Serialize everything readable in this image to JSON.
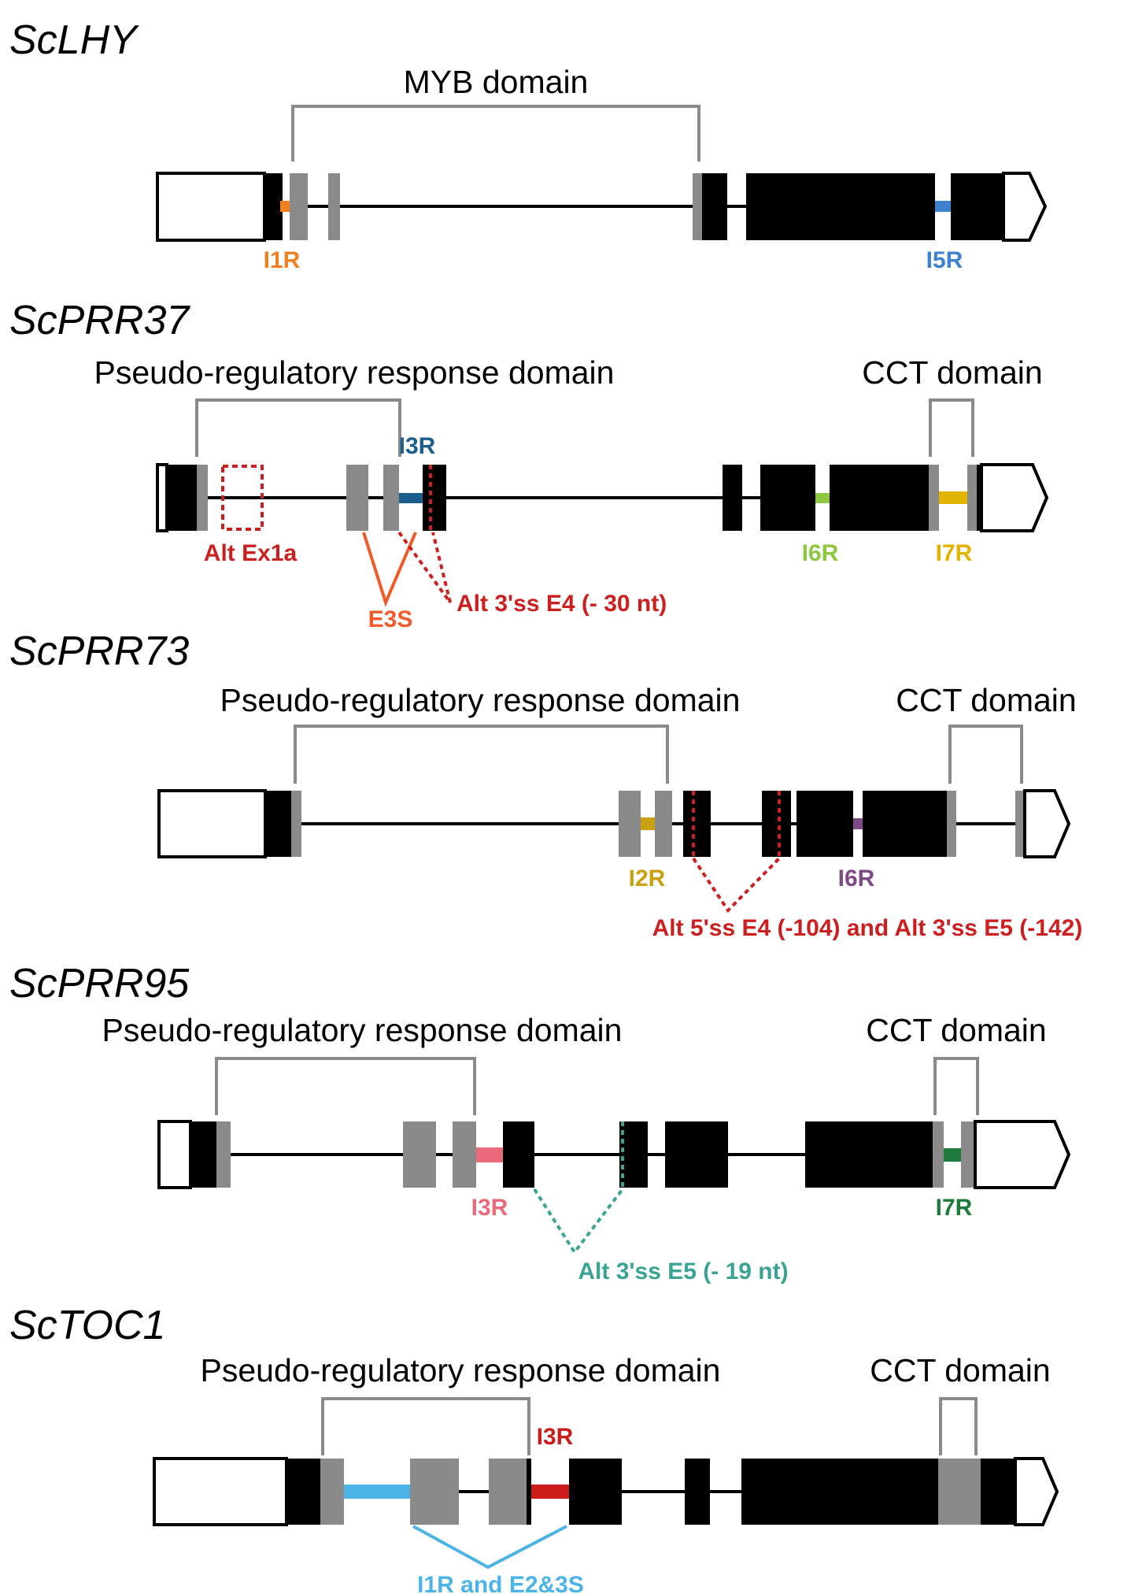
{
  "colors": {
    "orange": "#f08020",
    "blue": "#3c82cf",
    "dark_red": "#cc1f1f",
    "navy": "#1b5e8e",
    "lime": "#8dc63f",
    "gold": "#e0b400",
    "red_orange": "#f05a28",
    "purple": "#7d4a85",
    "olive_gold": "#c9a112",
    "pink": "#ea6a7c",
    "teal": "#3aa394",
    "green": "#1e7a3a",
    "red": "#cc1b1b",
    "sky_blue": "#4cb3e6"
  },
  "genes": [
    {
      "name": "ScLHY",
      "domains": [
        "MYB domain"
      ],
      "events": [
        "I1R",
        "I5R"
      ]
    },
    {
      "name": "ScPRR37",
      "domains": [
        "Pseudo-regulatory response domain",
        "CCT domain"
      ],
      "events": [
        "I3R",
        "Alt Ex1a",
        "I6R",
        "I7R",
        "E3S",
        "Alt 3'ss E4 (- 30 nt)"
      ]
    },
    {
      "name": "ScPRR73",
      "domains": [
        "Pseudo-regulatory response domain",
        "CCT domain"
      ],
      "events": [
        "I2R",
        "I6R",
        "Alt 5'ss E4 (-104) and Alt 3'ss E5 (-142)"
      ]
    },
    {
      "name": "ScPRR95",
      "domains": [
        "Pseudo-regulatory response domain",
        "CCT domain"
      ],
      "events": [
        "I3R",
        "I7R",
        "Alt 3'ss E5 (- 19 nt)"
      ]
    },
    {
      "name": "ScTOC1",
      "domains": [
        "Pseudo-regulatory response domain",
        "CCT domain"
      ],
      "events": [
        "I3R",
        "I1R and E2&3S"
      ]
    }
  ]
}
